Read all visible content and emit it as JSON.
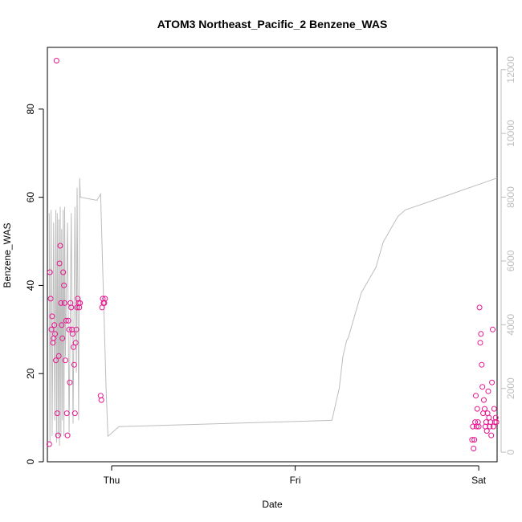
{
  "chart_data": {
    "type": "scatter",
    "title": "ATOM3 Northeast_Pacific_2 Benzene_WAS",
    "xlabel": "Date",
    "ylabel": "Benzene_WAS",
    "x_ticks": [
      "Thu",
      "Fri",
      "Sat"
    ],
    "y_ticks": [
      "0",
      "20",
      "40",
      "60",
      "80"
    ],
    "y2_ticks": [
      "0",
      "2000",
      "4000",
      "6000",
      "8000",
      "10000",
      "12000"
    ],
    "xlim": [
      -0.175,
      1.05
    ],
    "ylim": [
      0,
      94
    ],
    "y2lim": [
      -300,
      12700
    ],
    "grid": false,
    "legend": "none",
    "colors": {
      "points": "#e7158f",
      "altitude_line": "#bdbdbd"
    },
    "series": [
      {
        "type": "scatter",
        "axis": "left",
        "x": [
          -0.17,
          -0.168,
          -0.166,
          -0.164,
          -0.162,
          -0.16,
          -0.158,
          -0.156,
          -0.154,
          -0.152,
          -0.15,
          -0.148,
          -0.146,
          -0.144,
          -0.142,
          -0.14,
          -0.138,
          -0.136,
          -0.134,
          -0.132,
          -0.13,
          -0.128,
          -0.126,
          -0.124,
          -0.122,
          -0.12,
          -0.118,
          -0.116,
          -0.114,
          -0.112,
          -0.11,
          -0.108,
          -0.106,
          -0.104,
          -0.102,
          -0.1,
          -0.098,
          -0.096,
          -0.094,
          -0.092,
          -0.09,
          -0.088,
          -0.086,
          -0.03,
          -0.028,
          -0.026,
          -0.024,
          -0.022,
          -0.02,
          -0.018,
          0.982,
          0.984,
          0.986,
          0.988,
          0.99,
          0.992,
          0.994,
          0.996,
          0.998,
          1.0,
          1.002,
          1.004,
          1.006,
          1.008,
          1.01,
          1.012,
          1.014,
          1.016,
          1.018,
          1.02,
          1.022,
          1.024,
          1.026,
          1.028,
          1.03,
          1.032,
          1.034,
          1.036,
          1.038,
          1.04,
          1.042,
          1.044,
          1.046,
          1.048
        ],
        "y": [
          4,
          43,
          37,
          30,
          33,
          27,
          28,
          31,
          29,
          23,
          91,
          11,
          6,
          24,
          45,
          49,
          36,
          31,
          28,
          43,
          40,
          36,
          23,
          32,
          11,
          6,
          32,
          30,
          18,
          36,
          35,
          30,
          29,
          26,
          22,
          11,
          27,
          30,
          35,
          37,
          36,
          35,
          36,
          15,
          14,
          35,
          37,
          36,
          36,
          37,
          5,
          8,
          3,
          5,
          9,
          15,
          8,
          12,
          9,
          8,
          35,
          27,
          29,
          22,
          17,
          11,
          14,
          12,
          8,
          9,
          7,
          11,
          16,
          10,
          8,
          9,
          6,
          18,
          30,
          8,
          12,
          9,
          10,
          9
        ]
      },
      {
        "type": "line",
        "axis": "right",
        "x": [
          -0.17,
          -0.168,
          -0.165,
          -0.162,
          -0.158,
          -0.155,
          -0.152,
          -0.15,
          -0.148,
          -0.146,
          -0.144,
          -0.142,
          -0.14,
          -0.138,
          -0.136,
          -0.134,
          -0.132,
          -0.13,
          -0.128,
          -0.126,
          -0.12,
          -0.116,
          -0.11,
          -0.105,
          -0.1,
          -0.096,
          -0.094,
          -0.09,
          -0.087,
          -0.085,
          -0.04,
          -0.03,
          -0.025,
          -0.02,
          -0.015,
          -0.01,
          0.0,
          0.02,
          0.6,
          0.62,
          0.63,
          0.64,
          0.645,
          0.65,
          0.655,
          0.66,
          0.665,
          0.67,
          0.675,
          0.68,
          0.69,
          0.7,
          0.71,
          0.72,
          0.725,
          0.73,
          0.735,
          0.74,
          0.75,
          0.76,
          0.77,
          0.78,
          0.8,
          0.85,
          0.9,
          0.95,
          1.0,
          1.05
        ],
        "y": [
          7500,
          300,
          7600,
          500,
          7200,
          1000,
          7600,
          300,
          7500,
          500,
          7300,
          200,
          7700,
          500,
          7000,
          1000,
          7600,
          500,
          7700,
          3000,
          7200,
          600,
          7500,
          900,
          7700,
          2500,
          8300,
          1000,
          8600,
          8000,
          7900,
          8100,
          6000,
          4000,
          2000,
          500,
          600,
          800,
          1000,
          2000,
          3000,
          3500,
          3600,
          3800,
          4000,
          4200,
          4400,
          4600,
          4800,
          5000,
          5200,
          5400,
          5600,
          5800,
          6000,
          6200,
          6400,
          6600,
          6800,
          7000,
          7200,
          7400,
          7600,
          7800,
          8000,
          8200,
          8400,
          8600
        ]
      }
    ]
  }
}
